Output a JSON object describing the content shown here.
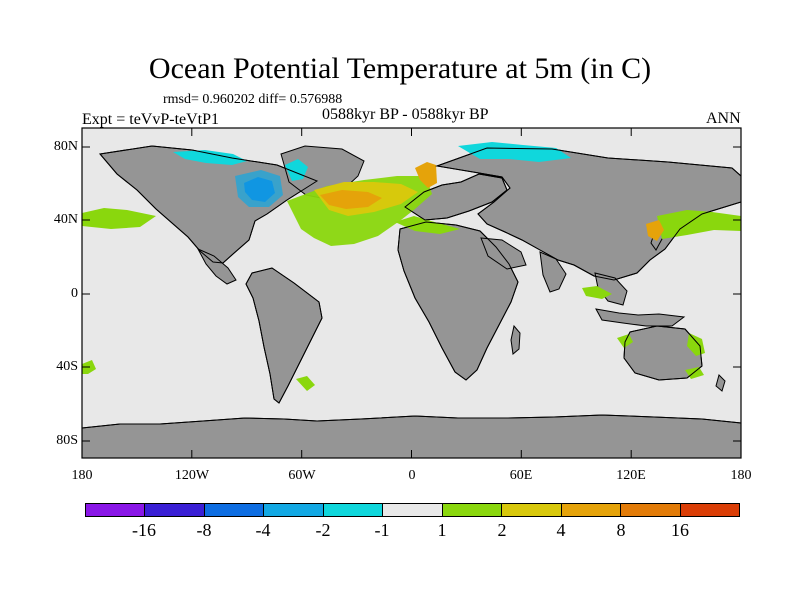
{
  "title": "Ocean Potential Temperature at 5m (in C)",
  "stats_text": "rmsd= 0.960202 diff= 0.576988",
  "left_label": "Expt = teVvP-teVtP1",
  "center_label": "0588kyr BP - 0588kyr BP",
  "right_label": "ANN",
  "map": {
    "x_ticks": [
      "180",
      "120W",
      "60W",
      "0",
      "60E",
      "120E",
      "180"
    ],
    "y_ticks": [
      "80N",
      "40N",
      "0",
      "40S",
      "80S"
    ],
    "land_color": "#959595",
    "ocean_color": "#e8e8e8"
  },
  "legend": {
    "colors": [
      "#8a17e7",
      "#3a1fd5",
      "#0d6de1",
      "#12a8e3",
      "#10d7dc",
      "#e8e8e8",
      "#8ad70d",
      "#d8c80c",
      "#e5a30a",
      "#e27b08",
      "#da3d06"
    ],
    "labels": [
      "-16",
      "-8",
      "-4",
      "-2",
      "-1",
      "1",
      "2",
      "4",
      "8",
      "16"
    ]
  }
}
